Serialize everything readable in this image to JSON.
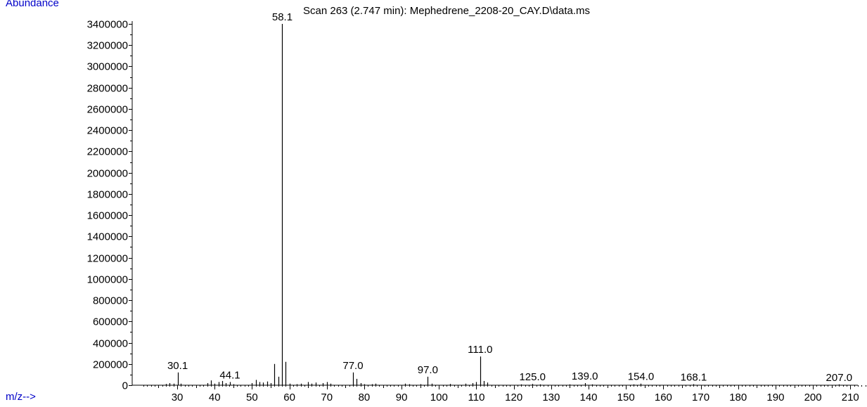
{
  "chart_data": {
    "type": "bar",
    "title": "Scan 263 (2.747 min): Mephedrene_2208-20_CAY.D\\data.ms",
    "ylabel": "Abundance",
    "xlabel": "m/z-->",
    "xlim": [
      21,
      215
    ],
    "ylim": [
      0,
      3400000
    ],
    "y_ticks": [
      0,
      200000,
      400000,
      600000,
      800000,
      1000000,
      1200000,
      1400000,
      1600000,
      1800000,
      2000000,
      2200000,
      2400000,
      2600000,
      2800000,
      3000000,
      3200000,
      3400000
    ],
    "x_ticks": [
      30,
      40,
      50,
      60,
      70,
      80,
      90,
      100,
      110,
      120,
      130,
      140,
      150,
      160,
      170,
      180,
      190,
      200,
      210
    ],
    "colors": {
      "spectrum": "#000000",
      "axis_label": "#0000c8"
    },
    "peaks": [
      {
        "mz": 27.0,
        "abundance": 12000
      },
      {
        "mz": 28.0,
        "abundance": 20000
      },
      {
        "mz": 29.0,
        "abundance": 15000
      },
      {
        "mz": 30.1,
        "abundance": 120000
      },
      {
        "mz": 31.0,
        "abundance": 15000
      },
      {
        "mz": 38.0,
        "abundance": 20000
      },
      {
        "mz": 39.0,
        "abundance": 45000
      },
      {
        "mz": 40.0,
        "abundance": 15000
      },
      {
        "mz": 41.0,
        "abundance": 30000
      },
      {
        "mz": 42.0,
        "abundance": 40000
      },
      {
        "mz": 43.0,
        "abundance": 20000
      },
      {
        "mz": 44.1,
        "abundance": 30000
      },
      {
        "mz": 45.0,
        "abundance": 10000
      },
      {
        "mz": 50.0,
        "abundance": 20000
      },
      {
        "mz": 51.0,
        "abundance": 50000
      },
      {
        "mz": 52.0,
        "abundance": 30000
      },
      {
        "mz": 53.0,
        "abundance": 25000
      },
      {
        "mz": 54.0,
        "abundance": 35000
      },
      {
        "mz": 55.0,
        "abundance": 20000
      },
      {
        "mz": 56.0,
        "abundance": 200000
      },
      {
        "mz": 57.0,
        "abundance": 80000
      },
      {
        "mz": 58.1,
        "abundance": 3400000
      },
      {
        "mz": 59.0,
        "abundance": 220000
      },
      {
        "mz": 60.0,
        "abundance": 15000
      },
      {
        "mz": 62.0,
        "abundance": 10000
      },
      {
        "mz": 63.0,
        "abundance": 15000
      },
      {
        "mz": 65.0,
        "abundance": 30000
      },
      {
        "mz": 66.0,
        "abundance": 15000
      },
      {
        "mz": 67.0,
        "abundance": 25000
      },
      {
        "mz": 69.0,
        "abundance": 20000
      },
      {
        "mz": 70.0,
        "abundance": 30000
      },
      {
        "mz": 71.0,
        "abundance": 15000
      },
      {
        "mz": 77.0,
        "abundance": 120000
      },
      {
        "mz": 78.0,
        "abundance": 60000
      },
      {
        "mz": 79.0,
        "abundance": 20000
      },
      {
        "mz": 80.0,
        "abundance": 10000
      },
      {
        "mz": 82.0,
        "abundance": 10000
      },
      {
        "mz": 83.0,
        "abundance": 15000
      },
      {
        "mz": 91.0,
        "abundance": 15000
      },
      {
        "mz": 92.0,
        "abundance": 10000
      },
      {
        "mz": 95.0,
        "abundance": 10000
      },
      {
        "mz": 97.0,
        "abundance": 80000
      },
      {
        "mz": 98.0,
        "abundance": 15000
      },
      {
        "mz": 103.0,
        "abundance": 12000
      },
      {
        "mz": 107.0,
        "abundance": 15000
      },
      {
        "mz": 109.0,
        "abundance": 20000
      },
      {
        "mz": 110.0,
        "abundance": 30000
      },
      {
        "mz": 111.0,
        "abundance": 270000
      },
      {
        "mz": 112.0,
        "abundance": 40000
      },
      {
        "mz": 113.0,
        "abundance": 25000
      },
      {
        "mz": 122.0,
        "abundance": 8000
      },
      {
        "mz": 125.0,
        "abundance": 12000
      },
      {
        "mz": 127.0,
        "abundance": 8000
      },
      {
        "mz": 135.0,
        "abundance": 8000
      },
      {
        "mz": 139.0,
        "abundance": 20000
      },
      {
        "mz": 141.0,
        "abundance": 8000
      },
      {
        "mz": 152.0,
        "abundance": 8000
      },
      {
        "mz": 154.0,
        "abundance": 15000
      },
      {
        "mz": 168.1,
        "abundance": 10000
      },
      {
        "mz": 207.0,
        "abundance": 8000
      }
    ],
    "peak_labels": [
      {
        "mz": 30.1,
        "text": "30.1"
      },
      {
        "mz": 44.1,
        "text": "44.1"
      },
      {
        "mz": 58.1,
        "text": "58.1"
      },
      {
        "mz": 77.0,
        "text": "77.0"
      },
      {
        "mz": 97.0,
        "text": "97.0"
      },
      {
        "mz": 111.0,
        "text": "111.0"
      },
      {
        "mz": 125.0,
        "text": "125.0"
      },
      {
        "mz": 139.0,
        "text": "139.0"
      },
      {
        "mz": 154.0,
        "text": "154.0"
      },
      {
        "mz": 168.1,
        "text": "168.1"
      },
      {
        "mz": 207.0,
        "text": "207.0"
      }
    ]
  }
}
